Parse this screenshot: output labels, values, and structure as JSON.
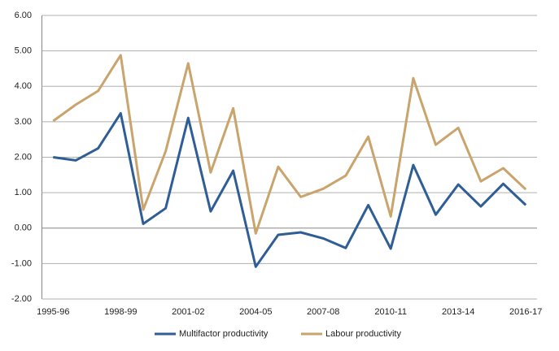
{
  "chart_data": {
    "type": "line",
    "categories": [
      "1995-96",
      null,
      null,
      "1998-99",
      null,
      null,
      "2001-02",
      null,
      null,
      "2004-05",
      null,
      null,
      "2007-08",
      null,
      null,
      "2010-11",
      null,
      null,
      "2013-14",
      null,
      null,
      "2016-17"
    ],
    "series": [
      {
        "name": "Multifactor productivity",
        "color": "#2f5e96",
        "values": [
          2.0,
          1.91,
          2.25,
          3.24,
          0.12,
          0.56,
          3.11,
          0.47,
          1.62,
          -1.09,
          -0.19,
          -0.12,
          -0.29,
          -0.56,
          0.65,
          -0.58,
          1.78,
          0.38,
          1.23,
          0.61,
          1.25,
          0.65
        ]
      },
      {
        "name": "Labour productivity",
        "color": "#c9a46c",
        "values": [
          3.02,
          3.48,
          3.87,
          4.88,
          0.52,
          2.17,
          4.65,
          1.57,
          3.38,
          -0.15,
          1.73,
          0.88,
          1.11,
          1.48,
          2.58,
          0.33,
          4.23,
          2.35,
          2.83,
          1.32,
          1.69,
          1.09
        ]
      }
    ],
    "ylim": [
      -2,
      6
    ],
    "yticks": [
      {
        "value": -2,
        "label": "-2.00"
      },
      {
        "value": -1,
        "label": "-1.00"
      },
      {
        "value": 0,
        "label": "0.00"
      },
      {
        "value": 1,
        "label": "1.00"
      },
      {
        "value": 2,
        "label": "2.00"
      },
      {
        "value": 3,
        "label": "3.00"
      },
      {
        "value": 4,
        "label": "4.00"
      },
      {
        "value": 5,
        "label": "5.00"
      },
      {
        "value": 6,
        "label": "6.00"
      }
    ],
    "grid": true,
    "legend": "bottom"
  }
}
